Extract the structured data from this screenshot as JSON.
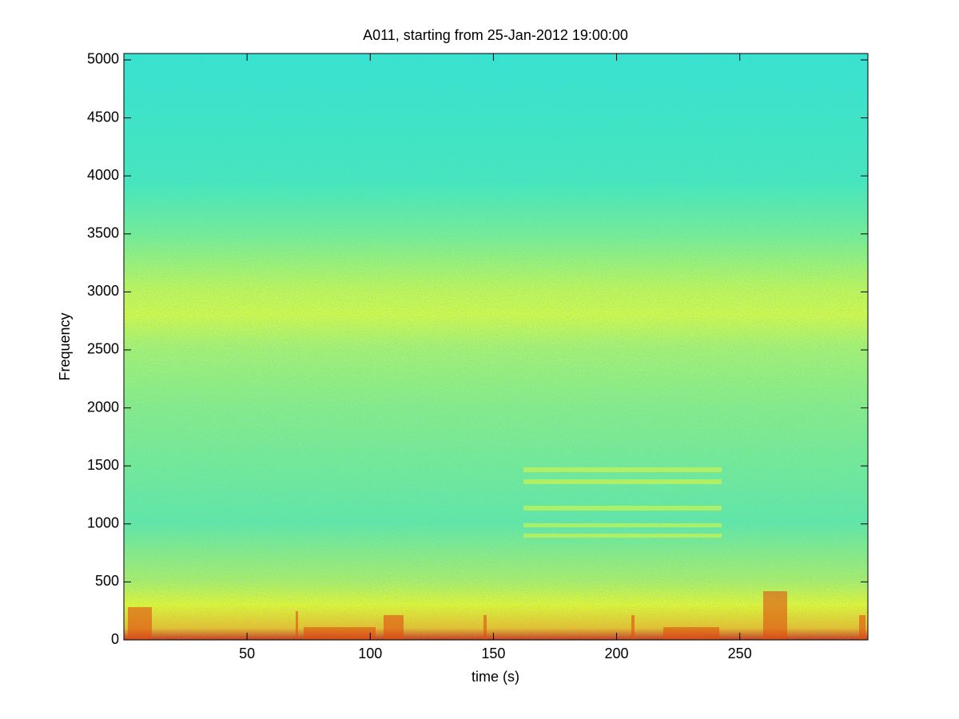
{
  "chart_data": {
    "type": "spectrogram",
    "title": "A011, starting from 25-Jan-2012 19:00:00",
    "xlabel": "time (s)",
    "ylabel": "Frequency",
    "xlim": [
      0,
      302
    ],
    "xticks": [
      50,
      100,
      150,
      200,
      250
    ],
    "ylim": [
      0,
      5055
    ],
    "yticks": [
      0,
      500,
      1000,
      1500,
      2000,
      2500,
      3000,
      3500,
      4000,
      4500,
      5000
    ]
  }
}
